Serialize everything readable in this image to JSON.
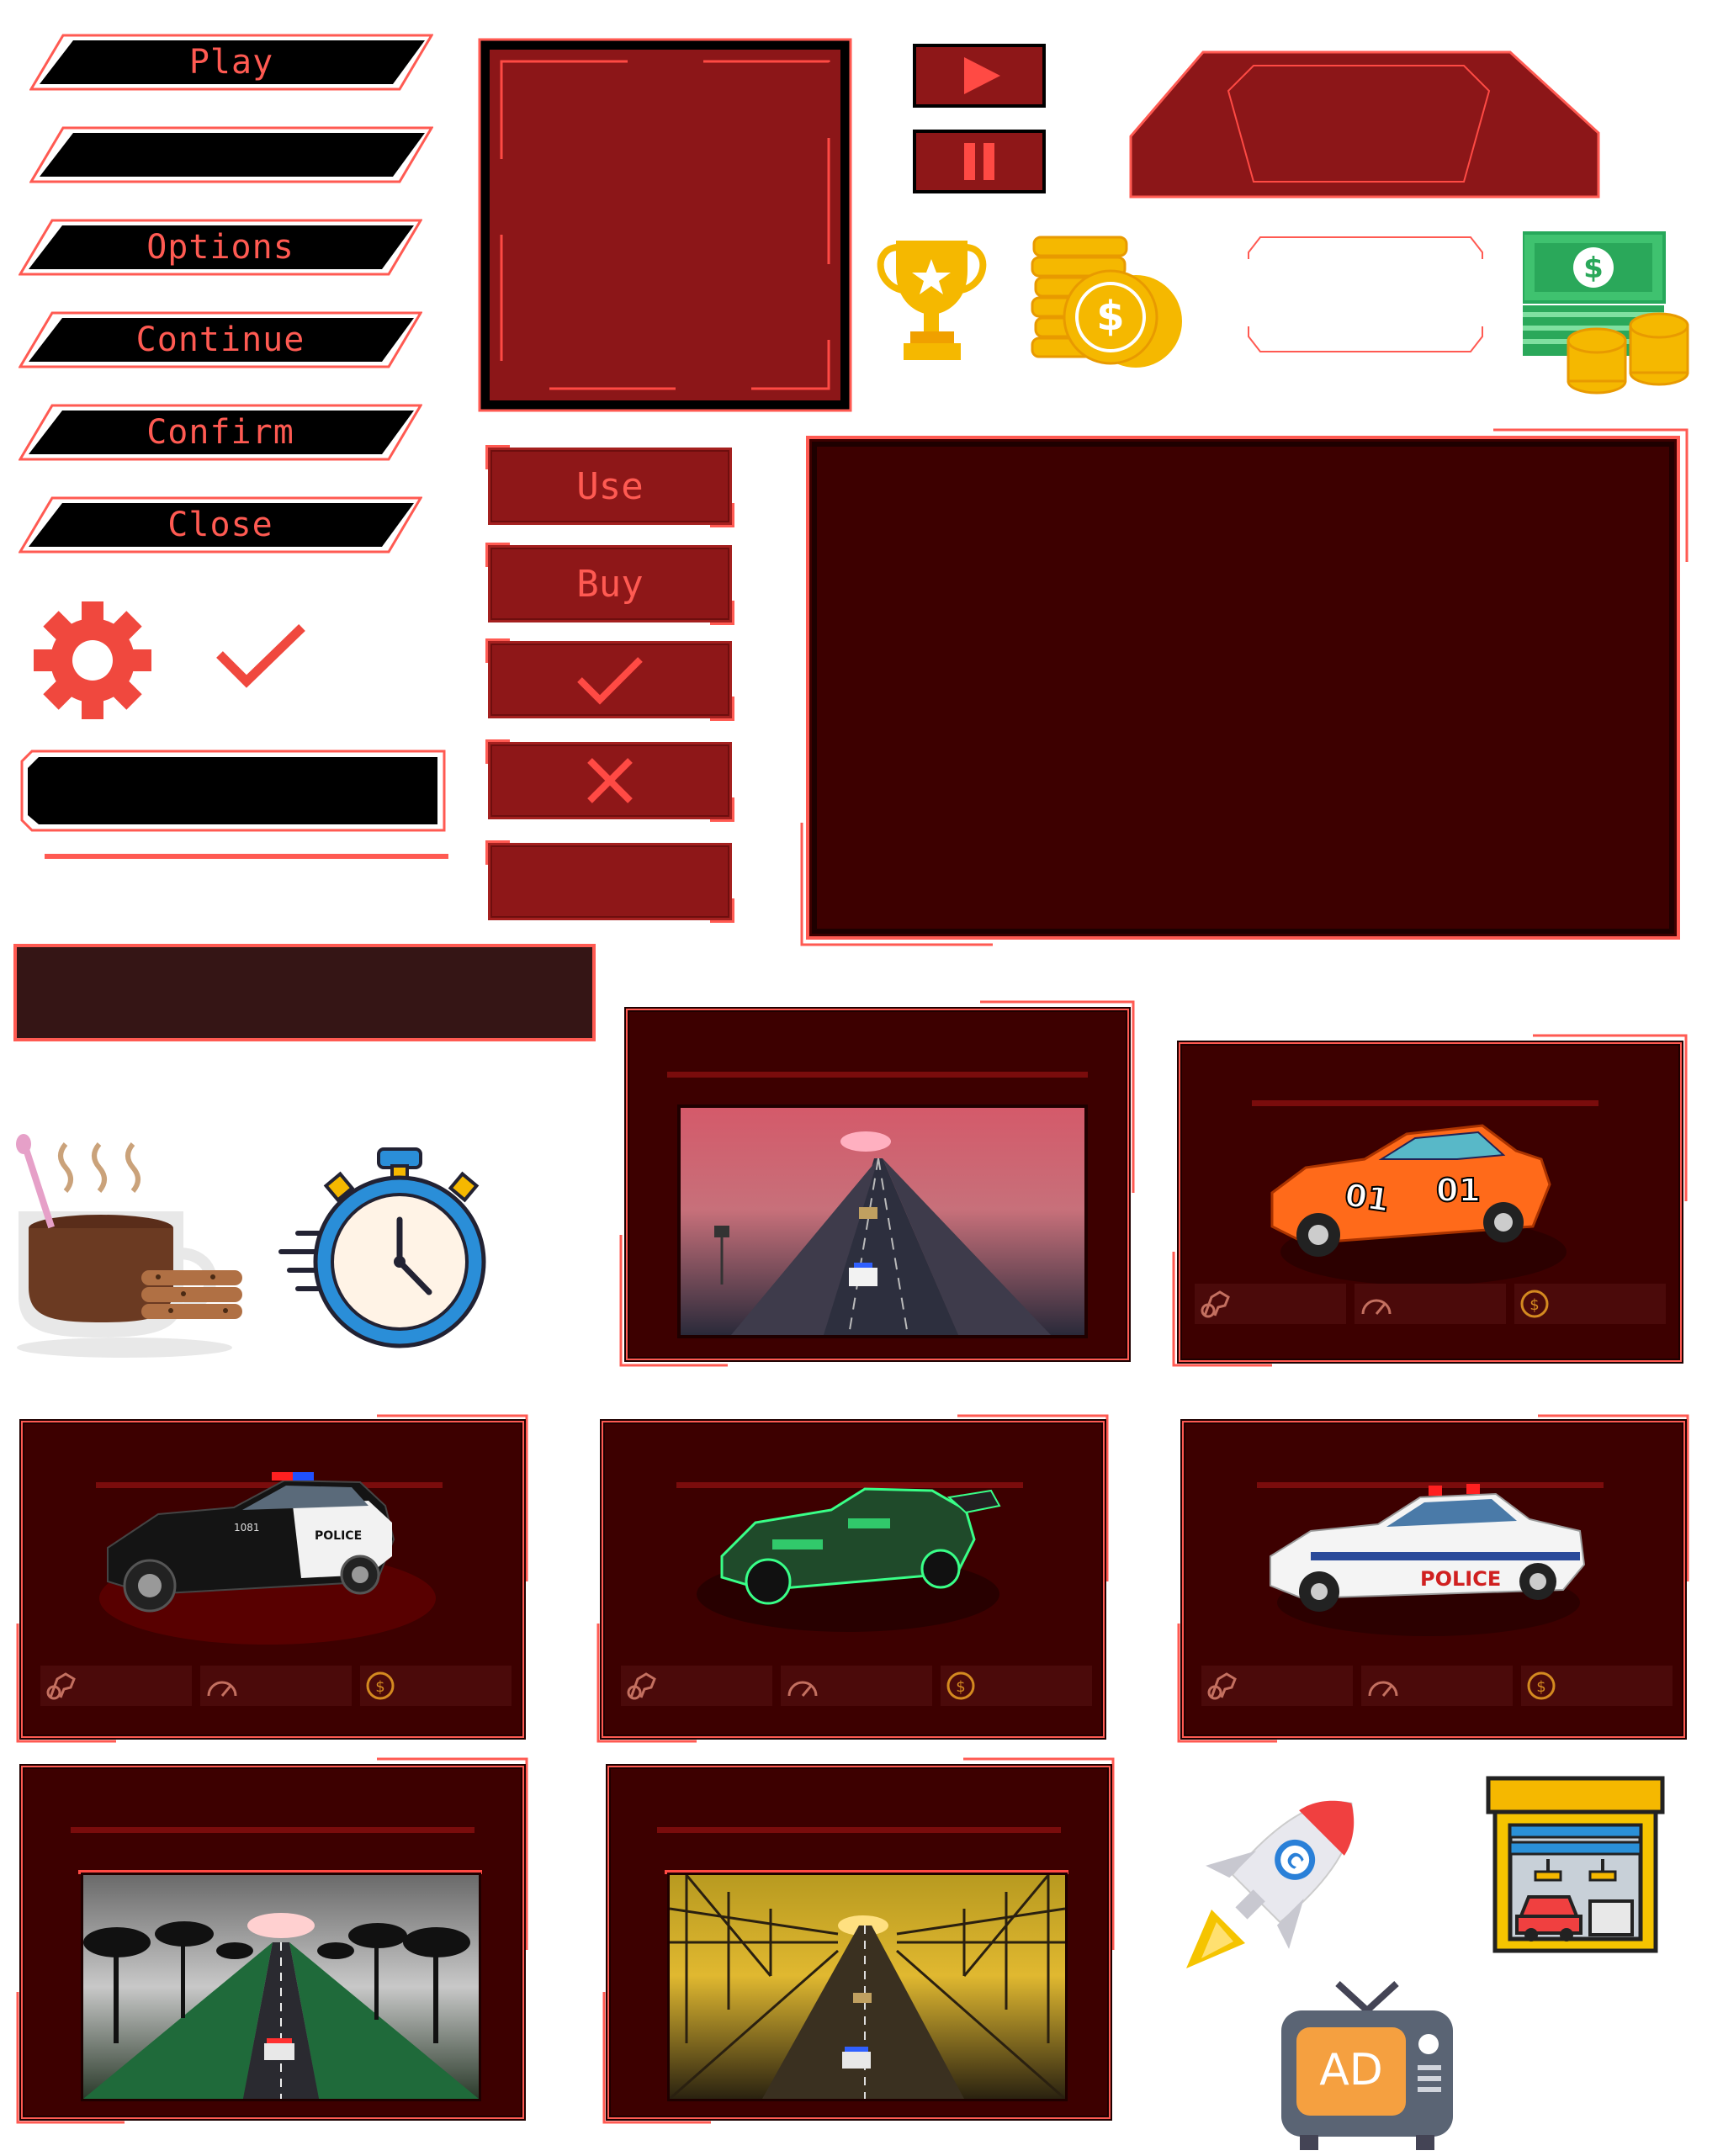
{
  "menu": {
    "buttons": [
      "Play",
      "",
      "Options",
      "Continue",
      "Confirm",
      "Close"
    ]
  },
  "action_buttons": {
    "use": "Use",
    "buy": "Buy",
    "confirm_icon": "checkmark-icon",
    "cancel_icon": "x-icon",
    "blank": ""
  },
  "icons": [
    "play-icon",
    "pause-icon",
    "trophy-icon",
    "coins-icon",
    "cash-icon",
    "gear-icon",
    "checkmark-icon",
    "coffee-icon",
    "stopwatch-icon",
    "rocket-icon",
    "garage-icon",
    "tv-ad-icon"
  ],
  "ad_icon": {
    "label": "AD"
  },
  "rocket_icon": {
    "letter": "C"
  },
  "coin_icon": {
    "symbol": "$"
  },
  "cards": {
    "levels": [
      "night-highway-level",
      "forest-road-level",
      "bridge-sunset-level"
    ],
    "cars": [
      "orange-01-car",
      "black-police-car",
      "green-armored-car",
      "white-police-car"
    ],
    "stat_icons": [
      "horsepower-icon",
      "speedometer-icon",
      "coin-icon"
    ]
  },
  "car_decals": {
    "orange_number": "01",
    "police_text": "POLICE",
    "police_number": "1081"
  },
  "colors": {
    "accent": "#ff5a52",
    "panel_dark": "#3d0000",
    "button_red": "#8e1718",
    "black": "#000000",
    "gold": "#f5b800"
  }
}
